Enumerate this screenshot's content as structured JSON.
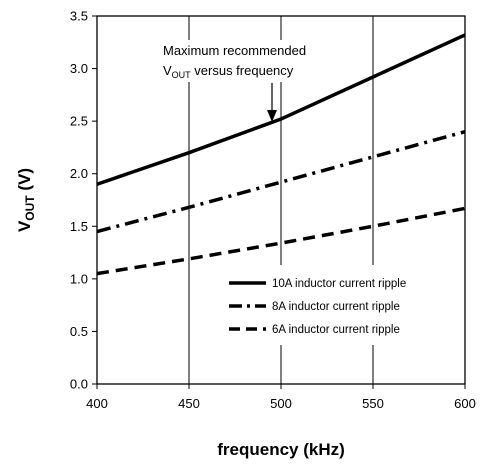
{
  "chart_data": {
    "type": "line",
    "xlabel": "frequency (kHz)",
    "ylabel": {
      "main": "V",
      "sub": "OUT",
      "unit": " (V)"
    },
    "xlim": [
      400,
      600
    ],
    "ylim": [
      0,
      3.5
    ],
    "xticks": [
      400,
      450,
      500,
      550,
      600
    ],
    "yticks": [
      "0.0",
      "0.5",
      "1.0",
      "1.5",
      "2.0",
      "2.5",
      "3.0",
      "3.5"
    ],
    "grid": "vertical",
    "legend_position": "bottom-right",
    "series": [
      {
        "name": "10A inductor current ripple",
        "style": "solid",
        "x": [
          400,
          450,
          500,
          550,
          600
        ],
        "y": [
          1.9,
          2.2,
          2.52,
          2.92,
          3.32
        ]
      },
      {
        "name": "8A inductor current ripple",
        "style": "dashdot",
        "x": [
          400,
          450,
          500,
          550,
          600
        ],
        "y": [
          1.45,
          1.68,
          1.92,
          2.16,
          2.4
        ]
      },
      {
        "name": "6A inductor current ripple",
        "style": "dashed",
        "x": [
          400,
          450,
          500,
          550,
          600
        ],
        "y": [
          1.05,
          1.19,
          1.34,
          1.5,
          1.67
        ]
      }
    ],
    "annotation": {
      "line1": "Maximum recommended",
      "line2_main": "V",
      "line2_sub": "OUT",
      "line2_rest": " versus frequency",
      "points_to": {
        "x": 495,
        "y": 2.5
      }
    }
  }
}
